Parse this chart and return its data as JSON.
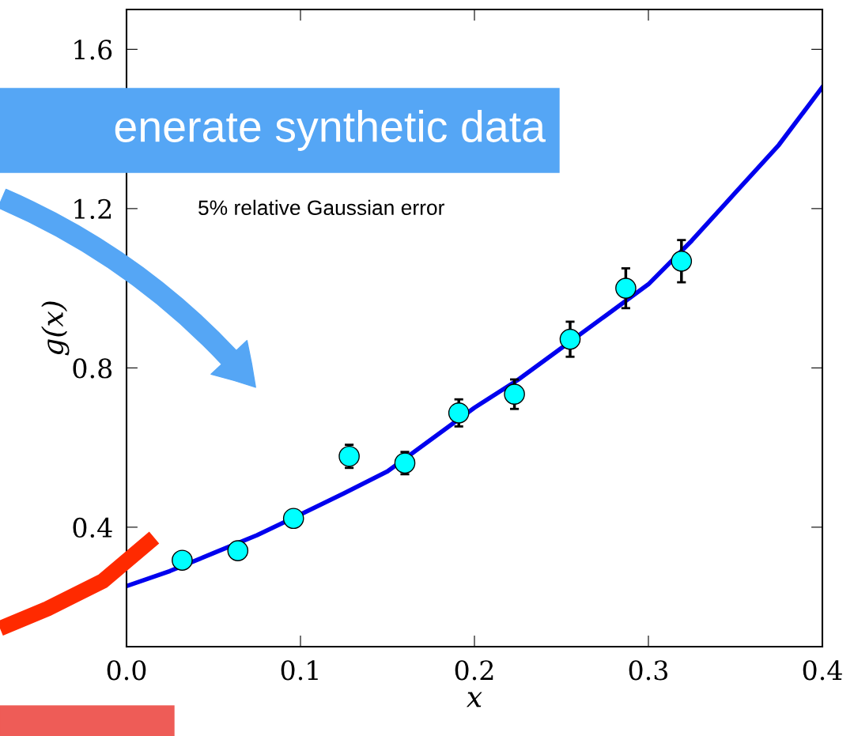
{
  "chart_data": {
    "type": "scatter",
    "xlabel": "x",
    "ylabel": "g(x)",
    "annotations": [
      "enerate synthetic data",
      "5% relative Gaussian error"
    ],
    "xlim": [
      0.0,
      0.4
    ],
    "ylim": [
      0.1,
      1.7
    ],
    "xticks": [
      {
        "value": 0.0,
        "label": "0.0"
      },
      {
        "value": 0.1,
        "label": "0.1"
      },
      {
        "value": 0.2,
        "label": "0.2"
      },
      {
        "value": 0.3,
        "label": "0.3"
      },
      {
        "value": 0.4,
        "label": "0.4"
      }
    ],
    "yticks": [
      {
        "value": 0.4,
        "label": "0.4"
      },
      {
        "value": 0.8,
        "label": "0.8"
      },
      {
        "value": 1.2,
        "label": "1.2"
      },
      {
        "value": 1.6,
        "label": "1.6"
      }
    ],
    "grid": false,
    "series": [
      {
        "type": "line",
        "marker": "none",
        "color": "#0000ee",
        "x": [
          0,
          0.025,
          0.05,
          0.075,
          0.1,
          0.125,
          0.15,
          0.175,
          0.2,
          0.225,
          0.25,
          0.275,
          0.3,
          0.325,
          0.35,
          0.375,
          0.4
        ],
        "values": [
          0.252,
          0.29,
          0.335,
          0.38,
          0.432,
          0.485,
          0.54,
          0.62,
          0.7,
          0.77,
          0.85,
          0.93,
          1.01,
          1.12,
          1.24,
          1.36,
          1.505
        ]
      },
      {
        "marker": "circle",
        "color": "#00ffff",
        "x": [
          0.032,
          0.064,
          0.096,
          0.128,
          0.16,
          0.191,
          0.223,
          0.255,
          0.287,
          0.319
        ],
        "values": [
          0.317,
          0.341,
          0.422,
          0.578,
          0.561,
          0.687,
          0.734,
          0.872,
          1.0,
          1.068
        ],
        "errors": [
          null,
          null,
          0.021,
          0.029,
          0.028,
          0.034,
          0.037,
          0.044,
          0.05,
          0.053
        ]
      }
    ]
  }
}
